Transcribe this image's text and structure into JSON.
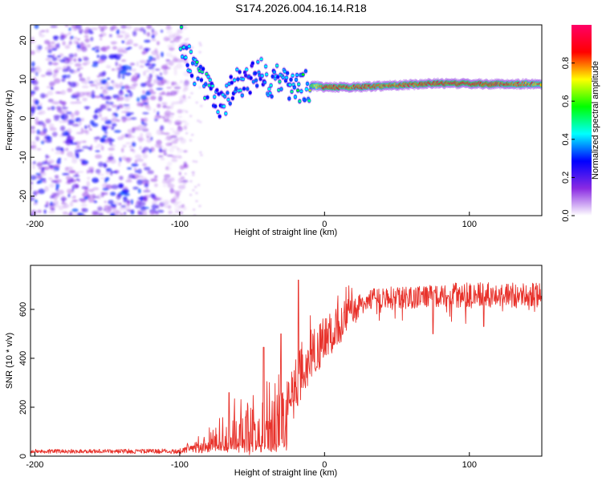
{
  "title": "S174.2026.004.16.14.R18",
  "chart_data": [
    {
      "type": "heatmap",
      "panel": "spectrogram",
      "xlabel": "Height of straight line (km)",
      "ylabel": "Frequency (Hz)",
      "xlim": [
        -203,
        150
      ],
      "ylim": [
        -25,
        24
      ],
      "xticks": [
        -200,
        -100,
        0,
        100
      ],
      "xtick_labels": [
        "-200",
        "-100",
        "0",
        "100"
      ],
      "yticks": [
        -20,
        -10,
        0,
        10,
        20
      ],
      "ytick_labels": [
        "-20",
        "-10",
        "0",
        "10",
        "20"
      ],
      "noise_region_x": [
        -203,
        -95
      ],
      "signal_track": [
        {
          "x": -100,
          "freq": 21.5,
          "amp": 0.55
        },
        {
          "x": -92,
          "freq": 13.5,
          "amp": 0.45
        },
        {
          "x": -88,
          "freq": 11.5,
          "amp": 0.5
        },
        {
          "x": -80,
          "freq": 7.0,
          "amp": 0.45
        },
        {
          "x": -70,
          "freq": 3.0,
          "amp": 0.4
        },
        {
          "x": -62,
          "freq": 9.0,
          "amp": 0.45
        },
        {
          "x": -55,
          "freq": 8.5,
          "amp": 0.4
        },
        {
          "x": -45,
          "freq": 12.0,
          "amp": 0.4
        },
        {
          "x": -38,
          "freq": 9.0,
          "amp": 0.45
        },
        {
          "x": -30,
          "freq": 10.0,
          "amp": 0.45
        },
        {
          "x": -22,
          "freq": 8.0,
          "amp": 0.5
        },
        {
          "x": -12,
          "freq": 8.5,
          "amp": 0.55
        },
        {
          "x": 0,
          "freq": 8.0,
          "amp": 0.95
        },
        {
          "x": 20,
          "freq": 8.0,
          "amp": 0.9
        },
        {
          "x": 50,
          "freq": 8.5,
          "amp": 0.9
        },
        {
          "x": 80,
          "freq": 9.0,
          "amp": 0.95
        },
        {
          "x": 110,
          "freq": 8.8,
          "amp": 0.95
        },
        {
          "x": 150,
          "freq": 8.8,
          "amp": 0.85
        }
      ]
    },
    {
      "type": "line",
      "panel": "snr",
      "xlabel": "Height of straight line (km)",
      "ylabel": "SNR (10 * v/v)",
      "xlim": [
        -203,
        150
      ],
      "ylim": [
        0,
        780
      ],
      "xticks": [
        -200,
        -100,
        0,
        100
      ],
      "xtick_labels": [
        "-200",
        "-100",
        "0",
        "100"
      ],
      "yticks": [
        0,
        200,
        400,
        600
      ],
      "ytick_labels": [
        "0",
        "200",
        "400",
        "600"
      ],
      "color": "#e8322b",
      "series": [
        {
          "name": "SNR",
          "envelope_x": [
            -203,
            -150,
            -100,
            -95,
            -90,
            -80,
            -70,
            -60,
            -50,
            -40,
            -30,
            -25,
            -20,
            -18,
            -15,
            -10,
            0,
            10,
            20,
            30,
            40,
            60,
            80,
            100,
            120,
            150
          ],
          "baseline": [
            20,
            20,
            20,
            25,
            30,
            45,
            60,
            80,
            100,
            130,
            150,
            200,
            230,
            280,
            330,
            380,
            450,
            520,
            590,
            640,
            650,
            650,
            655,
            660,
            660,
            655
          ],
          "spread": [
            12,
            12,
            15,
            25,
            30,
            50,
            80,
            120,
            160,
            180,
            200,
            150,
            120,
            130,
            120,
            130,
            130,
            110,
            80,
            60,
            60,
            70,
            70,
            75,
            75,
            75
          ],
          "spikes": [
            {
              "x": -66,
              "y": 260
            },
            {
              "x": -42,
              "y": 445
            },
            {
              "x": -30,
              "y": 500
            },
            {
              "x": -18,
              "y": 720
            },
            {
              "x": 75,
              "y": 500
            },
            {
              "x": 110,
              "y": 530
            }
          ]
        }
      ]
    }
  ],
  "colorbar": {
    "label": "Normalized spectral amplitude",
    "ticks": [
      0.0,
      0.2,
      0.4,
      0.6,
      0.8
    ],
    "tick_labels": [
      "0.0",
      "0.2",
      "0.4",
      "0.6",
      "0.8"
    ],
    "range": [
      0,
      1
    ],
    "stops": [
      "#ffffff",
      "#8a2be2",
      "#0000ff",
      "#00ffff",
      "#00ff00",
      "#ffff00",
      "#ff0000",
      "#ff0066"
    ]
  }
}
